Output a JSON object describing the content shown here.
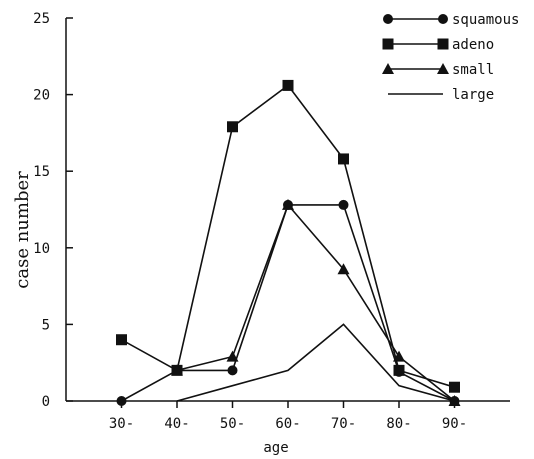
{
  "chart_data": {
    "type": "line",
    "title": "",
    "xlabel": "age",
    "ylabel": "case number",
    "categories": [
      "30-",
      "40-",
      "50-",
      "60-",
      "70-",
      "80-",
      "90-"
    ],
    "x_start": 20,
    "x_end": 100,
    "ylim": [
      0,
      25
    ],
    "yticks": [
      0,
      5,
      10,
      15,
      20,
      25
    ],
    "grid": false,
    "legend_position": "top-right",
    "series": [
      {
        "name": "squamous",
        "marker": "circle",
        "x": [
          30,
          40,
          50,
          60,
          70,
          80,
          90
        ],
        "values": [
          0,
          2,
          2,
          12.8,
          12.8,
          1.9,
          0
        ]
      },
      {
        "name": "adeno",
        "marker": "square",
        "x": [
          30,
          40,
          50,
          60,
          70,
          80,
          90
        ],
        "values": [
          4,
          2,
          17.9,
          20.6,
          15.8,
          2,
          0.9
        ]
      },
      {
        "name": "small",
        "marker": "triangle",
        "x": [
          40,
          50,
          60,
          70,
          80,
          90
        ],
        "values": [
          2,
          2.9,
          12.8,
          8.6,
          2.9,
          0
        ]
      },
      {
        "name": "large",
        "marker": "none",
        "x": [
          40,
          50,
          60,
          70,
          80,
          90
        ],
        "values": [
          0,
          1,
          2,
          5,
          1,
          0
        ]
      }
    ],
    "colors": {
      "line": "#111111",
      "background": "#ffffff"
    }
  }
}
